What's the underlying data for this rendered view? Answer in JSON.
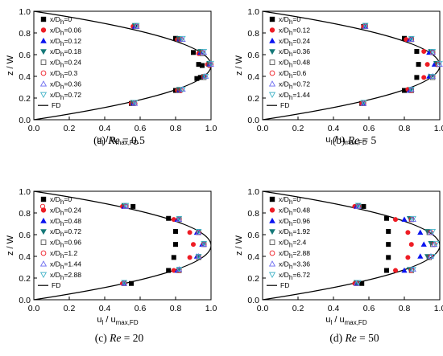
{
  "colors": {
    "axis": "#000000",
    "curve": "#000000",
    "black": "#000000",
    "red": "#ee1c24",
    "blue": "#0a14f0",
    "teal": "#147878",
    "gray": "#555555",
    "redring": "#ee1c24",
    "violet": "#6a6af0",
    "cyan": "#46b4c8"
  },
  "chart_data": [
    {
      "type": "scatter",
      "caption": {
        "prefix": "(a) ",
        "label": "Re",
        "value": " = 0.5"
      },
      "xlabel": {
        "main": "u",
        "main_sub": "l",
        "rest": " / u",
        "rest_sub": "max,FD"
      },
      "ylabel": "z / W",
      "xlim": [
        0.0,
        1.0
      ],
      "ylim": [
        0.0,
        1.0
      ],
      "xticks": [
        "0.0",
        "0.2",
        "0.4",
        "0.6",
        "0.8",
        "1.0"
      ],
      "yticks": [
        "0.0",
        "0.2",
        "0.4",
        "0.6",
        "0.8",
        "1.0"
      ],
      "legend_position": "left",
      "fd_label": "FD",
      "series": [
        {
          "name": "x/D",
          "sub": "h",
          "val": "=0",
          "marker": "square",
          "color": "black",
          "x": [
            0.57,
            0.8,
            0.9,
            0.93,
            0.95,
            0.94,
            0.92,
            0.8,
            0.55
          ],
          "y": [
            0.86,
            0.75,
            0.62,
            0.51,
            0.5,
            0.39,
            0.38,
            0.27,
            0.15
          ]
        },
        {
          "name": "x/D",
          "sub": "h",
          "val": "=0.06",
          "marker": "circle",
          "color": "red",
          "x": [
            0.56,
            0.81,
            0.93,
            0.98,
            0.99,
            0.96,
            0.81,
            0.55
          ],
          "y": [
            0.86,
            0.74,
            0.61,
            0.51,
            0.5,
            0.4,
            0.27,
            0.15
          ]
        },
        {
          "name": "x/D",
          "sub": "h",
          "val": "=0.12",
          "marker": "triangle-up",
          "color": "blue",
          "x": [
            0.57,
            0.82,
            0.94,
            0.99,
            0.96,
            0.82,
            0.56
          ],
          "y": [
            0.86,
            0.74,
            0.62,
            0.51,
            0.4,
            0.27,
            0.15
          ]
        },
        {
          "name": "x/D",
          "sub": "h",
          "val": "=0.18",
          "marker": "triangle-down",
          "color": "teal",
          "x": [
            0.57,
            0.82,
            0.94,
            0.99,
            0.96,
            0.82,
            0.56
          ],
          "y": [
            0.87,
            0.75,
            0.63,
            0.52,
            0.4,
            0.28,
            0.16
          ]
        },
        {
          "name": "x/D",
          "sub": "h",
          "val": "=0.24",
          "marker": "square-open",
          "color": "gray",
          "x": [
            0.58,
            0.82,
            0.95,
            0.99,
            0.96,
            0.82,
            0.56
          ],
          "y": [
            0.86,
            0.74,
            0.61,
            0.51,
            0.39,
            0.27,
            0.15
          ]
        },
        {
          "name": "x/D",
          "sub": "h",
          "val": "=0.3",
          "marker": "circle-open",
          "color": "redring",
          "x": [
            0.58,
            0.83,
            0.95,
            1.0,
            0.96,
            0.83,
            0.57
          ],
          "y": [
            0.86,
            0.74,
            0.62,
            0.51,
            0.4,
            0.27,
            0.15
          ]
        },
        {
          "name": "x/D",
          "sub": "h",
          "val": "=0.36",
          "marker": "triangle-up-open",
          "color": "violet",
          "x": [
            0.58,
            0.84,
            0.96,
            1.0,
            0.97,
            0.84,
            0.57
          ],
          "y": [
            0.86,
            0.74,
            0.62,
            0.51,
            0.4,
            0.28,
            0.15
          ]
        },
        {
          "name": "x/D",
          "sub": "h",
          "val": "=0.72",
          "marker": "triangle-down-open",
          "color": "cyan",
          "x": [
            0.58,
            0.84,
            0.96,
            1.0,
            0.97,
            0.84,
            0.57
          ],
          "y": [
            0.87,
            0.75,
            0.63,
            0.52,
            0.4,
            0.28,
            0.16
          ]
        }
      ]
    },
    {
      "type": "scatter",
      "caption": {
        "prefix": "(b) ",
        "label": "Re",
        "value": " = 5"
      },
      "xlabel": {
        "main": "u",
        "main_sub": "l",
        "rest": " / u",
        "rest_sub": "max,FD"
      },
      "ylabel": "z / W",
      "xlim": [
        0.0,
        1.0
      ],
      "ylim": [
        0.0,
        1.0
      ],
      "xticks": [
        "0.0",
        "0.2",
        "0.4",
        "0.6",
        "0.8",
        "1.0"
      ],
      "yticks": [
        "0.0",
        "0.2",
        "0.4",
        "0.6",
        "0.8",
        "1.0"
      ],
      "legend_position": "left",
      "fd_label": "FD",
      "series": [
        {
          "name": "x/D",
          "sub": "h",
          "val": "=0",
          "marker": "square",
          "color": "black",
          "x": [
            0.57,
            0.8,
            0.87,
            0.88,
            0.87,
            0.8,
            0.56
          ],
          "y": [
            0.86,
            0.75,
            0.63,
            0.51,
            0.39,
            0.27,
            0.15
          ]
        },
        {
          "name": "x/D",
          "sub": "h",
          "val": "=0.12",
          "marker": "circle",
          "color": "red",
          "x": [
            0.57,
            0.81,
            0.91,
            0.93,
            0.91,
            0.82,
            0.56
          ],
          "y": [
            0.86,
            0.74,
            0.63,
            0.51,
            0.39,
            0.28,
            0.15
          ]
        },
        {
          "name": "x/D",
          "sub": "h",
          "val": "=0.24",
          "marker": "triangle-up",
          "color": "blue",
          "x": [
            0.58,
            0.83,
            0.94,
            0.97,
            0.94,
            0.83,
            0.57
          ],
          "y": [
            0.86,
            0.74,
            0.62,
            0.51,
            0.4,
            0.27,
            0.15
          ]
        },
        {
          "name": "x/D",
          "sub": "h",
          "val": "=0.36",
          "marker": "triangle-down",
          "color": "teal",
          "x": [
            0.58,
            0.84,
            0.95,
            0.98,
            0.95,
            0.84,
            0.57
          ],
          "y": [
            0.87,
            0.75,
            0.63,
            0.52,
            0.4,
            0.28,
            0.16
          ]
        },
        {
          "name": "x/D",
          "sub": "h",
          "val": "=0.48",
          "marker": "square-open",
          "color": "gray",
          "x": [
            0.58,
            0.84,
            0.96,
            0.99,
            0.96,
            0.84,
            0.57
          ],
          "y": [
            0.86,
            0.74,
            0.62,
            0.51,
            0.39,
            0.27,
            0.15
          ]
        },
        {
          "name": "x/D",
          "sub": "h",
          "val": "=0.6",
          "marker": "circle-open",
          "color": "redring",
          "x": [
            0.58,
            0.84,
            0.96,
            0.99,
            0.96,
            0.84,
            0.57
          ],
          "y": [
            0.86,
            0.74,
            0.62,
            0.51,
            0.4,
            0.27,
            0.15
          ]
        },
        {
          "name": "x/D",
          "sub": "h",
          "val": "=0.72",
          "marker": "triangle-up-open",
          "color": "violet",
          "x": [
            0.58,
            0.84,
            0.96,
            1.0,
            0.96,
            0.84,
            0.57
          ],
          "y": [
            0.86,
            0.74,
            0.62,
            0.51,
            0.4,
            0.28,
            0.15
          ]
        },
        {
          "name": "x/D",
          "sub": "h",
          "val": "=1.44",
          "marker": "triangle-down-open",
          "color": "cyan",
          "x": [
            0.58,
            0.84,
            0.96,
            1.0,
            0.96,
            0.84,
            0.57
          ],
          "y": [
            0.87,
            0.75,
            0.63,
            0.52,
            0.4,
            0.28,
            0.16
          ]
        }
      ]
    },
    {
      "type": "scatter",
      "caption": {
        "prefix": "(c) ",
        "label": "Re",
        "value": " = 20"
      },
      "xlabel": {
        "main": "u",
        "main_sub": "l",
        "rest": " / u",
        "rest_sub": "max,FD"
      },
      "ylabel": "z / W",
      "xlim": [
        0.0,
        1.0
      ],
      "ylim": [
        0.0,
        1.0
      ],
      "xticks": [
        "0.0",
        "0.2",
        "0.4",
        "0.6",
        "0.8",
        "1.0"
      ],
      "yticks": [
        "0.0",
        "0.2",
        "0.4",
        "0.6",
        "0.8",
        "1.0"
      ],
      "legend_position": "left",
      "fd_label": "FD",
      "series": [
        {
          "name": "x/D",
          "sub": "h",
          "val": "=0",
          "marker": "square",
          "color": "black",
          "x": [
            0.56,
            0.76,
            0.8,
            0.8,
            0.79,
            0.76,
            0.55
          ],
          "y": [
            0.86,
            0.75,
            0.63,
            0.51,
            0.39,
            0.27,
            0.15
          ]
        },
        {
          "name": "x/D",
          "sub": "h",
          "val": "=0.24",
          "marker": "circle",
          "color": "red",
          "x": [
            0.5,
            0.79,
            0.88,
            0.9,
            0.88,
            0.79,
            0.5
          ],
          "y": [
            0.86,
            0.74,
            0.62,
            0.51,
            0.39,
            0.27,
            0.15
          ]
        },
        {
          "name": "x/D",
          "sub": "h",
          "val": "=0.48",
          "marker": "triangle-up",
          "color": "blue",
          "x": [
            0.51,
            0.81,
            0.92,
            0.95,
            0.92,
            0.81,
            0.51
          ],
          "y": [
            0.86,
            0.74,
            0.62,
            0.51,
            0.4,
            0.27,
            0.15
          ]
        },
        {
          "name": "x/D",
          "sub": "h",
          "val": "=0.72",
          "marker": "triangle-down",
          "color": "teal",
          "x": [
            0.51,
            0.82,
            0.93,
            0.96,
            0.93,
            0.82,
            0.51
          ],
          "y": [
            0.87,
            0.75,
            0.63,
            0.52,
            0.4,
            0.28,
            0.16
          ]
        },
        {
          "name": "x/D",
          "sub": "h",
          "val": "=0.96",
          "marker": "square-open",
          "color": "gray",
          "x": [
            0.52,
            0.82,
            0.93,
            0.96,
            0.93,
            0.82,
            0.51
          ],
          "y": [
            0.86,
            0.74,
            0.62,
            0.51,
            0.39,
            0.27,
            0.15
          ]
        },
        {
          "name": "x/D",
          "sub": "h",
          "val": "=1.2",
          "marker": "circle-open",
          "color": "redring",
          "x": [
            0.05,
            0.52,
            0.82,
            0.93,
            0.96,
            0.93,
            0.82,
            0.51
          ],
          "y": [
            0.86,
            0.86,
            0.74,
            0.62,
            0.51,
            0.4,
            0.27,
            0.15
          ]
        },
        {
          "name": "x/D",
          "sub": "h",
          "val": "=1.44",
          "marker": "triangle-up-open",
          "color": "violet",
          "x": [
            0.52,
            0.82,
            0.93,
            0.96,
            0.93,
            0.82,
            0.51
          ],
          "y": [
            0.86,
            0.74,
            0.62,
            0.51,
            0.4,
            0.28,
            0.15
          ]
        },
        {
          "name": "x/D",
          "sub": "h",
          "val": "=2.88",
          "marker": "triangle-down-open",
          "color": "cyan",
          "x": [
            0.52,
            0.82,
            0.93,
            0.96,
            0.93,
            0.82,
            0.51
          ],
          "y": [
            0.87,
            0.75,
            0.63,
            0.52,
            0.4,
            0.28,
            0.16
          ]
        }
      ]
    },
    {
      "type": "scatter",
      "caption": {
        "prefix": "(d) ",
        "label": "Re",
        "value": " = 50"
      },
      "xlabel": {
        "main": "u",
        "main_sub": "l",
        "rest": " / u",
        "rest_sub": "max,FD"
      },
      "ylabel": "z / W",
      "xlim": [
        0.0,
        1.0
      ],
      "ylim": [
        0.0,
        1.0
      ],
      "xticks": [
        "0.0",
        "0.2",
        "0.4",
        "0.6",
        "0.8",
        "1.0"
      ],
      "yticks": [
        "0.0",
        "0.2",
        "0.4",
        "0.6",
        "0.8",
        "1.0"
      ],
      "legend_position": "left",
      "fd_label": "FD",
      "series": [
        {
          "name": "x/D",
          "sub": "h",
          "val": "=0",
          "marker": "square",
          "color": "black",
          "x": [
            0.57,
            0.7,
            0.71,
            0.71,
            0.71,
            0.7,
            0.56
          ],
          "y": [
            0.86,
            0.75,
            0.63,
            0.51,
            0.39,
            0.27,
            0.15
          ]
        },
        {
          "name": "x/D",
          "sub": "h",
          "val": "=0.48",
          "marker": "circle",
          "color": "red",
          "x": [
            0.52,
            0.75,
            0.82,
            0.84,
            0.82,
            0.75,
            0.52
          ],
          "y": [
            0.86,
            0.74,
            0.62,
            0.51,
            0.39,
            0.27,
            0.15
          ]
        },
        {
          "name": "x/D",
          "sub": "h",
          "val": "=0.96",
          "marker": "triangle-up",
          "color": "blue",
          "x": [
            0.53,
            0.8,
            0.89,
            0.91,
            0.89,
            0.8,
            0.53
          ],
          "y": [
            0.86,
            0.74,
            0.62,
            0.51,
            0.4,
            0.27,
            0.15
          ]
        },
        {
          "name": "x/D",
          "sub": "h",
          "val": "=1.92",
          "marker": "triangle-down",
          "color": "teal",
          "x": [
            0.54,
            0.83,
            0.93,
            0.95,
            0.93,
            0.83,
            0.53
          ],
          "y": [
            0.87,
            0.75,
            0.63,
            0.52,
            0.4,
            0.28,
            0.16
          ]
        },
        {
          "name": "x/D",
          "sub": "h",
          "val": "=2.4",
          "marker": "square-open",
          "color": "gray",
          "x": [
            0.54,
            0.84,
            0.94,
            0.96,
            0.94,
            0.84,
            0.53
          ],
          "y": [
            0.86,
            0.74,
            0.62,
            0.51,
            0.39,
            0.27,
            0.15
          ]
        },
        {
          "name": "x/D",
          "sub": "h",
          "val": "=2.88",
          "marker": "circle-open",
          "color": "redring",
          "x": [
            0.54,
            0.84,
            0.95,
            0.97,
            0.95,
            0.84,
            0.53
          ],
          "y": [
            0.86,
            0.74,
            0.62,
            0.51,
            0.4,
            0.27,
            0.15
          ]
        },
        {
          "name": "x/D",
          "sub": "h",
          "val": "=3.36",
          "marker": "triangle-up-open",
          "color": "violet",
          "x": [
            0.54,
            0.85,
            0.95,
            0.97,
            0.95,
            0.85,
            0.53
          ],
          "y": [
            0.86,
            0.74,
            0.62,
            0.51,
            0.4,
            0.28,
            0.15
          ]
        },
        {
          "name": "x/D",
          "sub": "h",
          "val": "=6.72",
          "marker": "triangle-down-open",
          "color": "cyan",
          "x": [
            0.54,
            0.85,
            0.96,
            0.98,
            0.96,
            0.85,
            0.54
          ],
          "y": [
            0.87,
            0.75,
            0.63,
            0.52,
            0.4,
            0.28,
            0.16
          ]
        }
      ]
    }
  ]
}
